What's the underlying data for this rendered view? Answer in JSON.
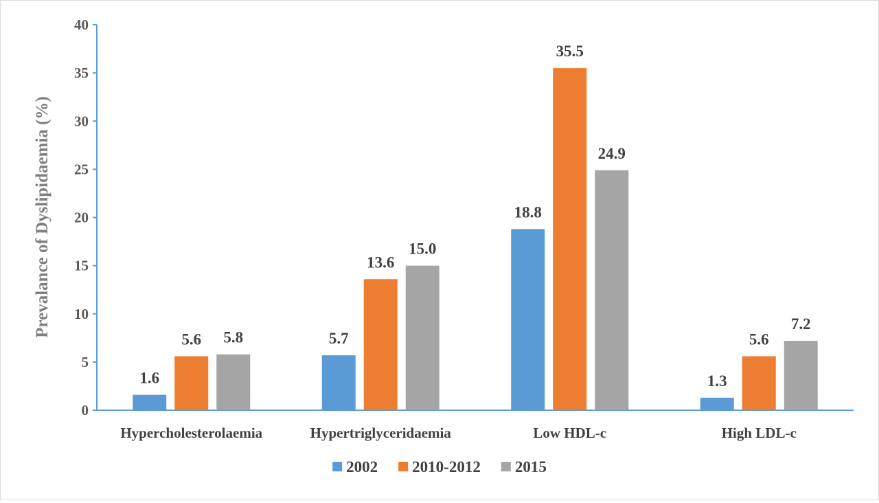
{
  "chart_data": {
    "type": "bar",
    "ylabel": "Prevalance of Dyslipidaemia (%)",
    "ylim": [
      0,
      40
    ],
    "yticks": [
      0,
      5,
      10,
      15,
      20,
      25,
      30,
      35,
      40
    ],
    "categories": [
      "Hypercholesterolaemia",
      "Hypertriglyceridaemia",
      "Low HDL-c",
      "High LDL-c"
    ],
    "series": [
      {
        "name": "2002",
        "color": "#5b9bd5",
        "values": [
          1.6,
          5.7,
          18.8,
          1.3
        ],
        "labels": [
          "1.6",
          "5.7",
          "18.8",
          "1.3"
        ]
      },
      {
        "name": "2010-2012",
        "color": "#ed7d31",
        "values": [
          5.6,
          13.6,
          35.5,
          5.6
        ],
        "labels": [
          "5.6",
          "13.6",
          "35.5",
          "5.6"
        ]
      },
      {
        "name": "2015",
        "color": "#a5a5a5",
        "values": [
          5.8,
          15.0,
          24.9,
          7.2
        ],
        "labels": [
          "5.8",
          "15.0",
          "24.9",
          "7.2"
        ]
      }
    ],
    "grid": false,
    "legend": "bottom-center",
    "axis_color": "#5b9bd5"
  }
}
